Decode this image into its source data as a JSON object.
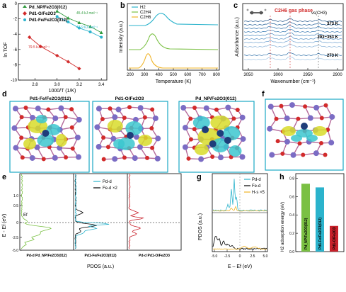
{
  "panels": {
    "a": {
      "label": "a",
      "ylabel": "ln TOF",
      "xlabel": "1000/T (1/K)",
      "xticks": [
        "2.8",
        "3.0",
        "3.2",
        "3.4"
      ],
      "yticks": [
        "-10",
        "-8",
        "-6",
        "-4",
        "-2",
        "0"
      ],
      "legend": [
        "Pd_NP/Fe2O3(012)",
        "Pd1-O/Fe2O3",
        "Pd1-Fe/Fe2O3(012)"
      ],
      "annotations": [
        "45.4 kJ mol⁻¹",
        "47.9 kJ mol⁻¹",
        "79.5 kJ mol⁻¹"
      ],
      "colors": {
        "np": "#2e9a3c",
        "o": "#d12a2a",
        "fe": "#2bb3cc"
      }
    },
    "b": {
      "label": "b",
      "ylabel": "Intensity (a.u.)",
      "xlabel": "Temperature (K)",
      "xticks": [
        "200",
        "300",
        "400",
        "500",
        "600",
        "700",
        "800"
      ],
      "legend": [
        "H2",
        "C2H4",
        "C2H6"
      ],
      "colors": [
        "#2bb3cc",
        "#7ac043",
        "#f0b428"
      ]
    },
    "c": {
      "label": "c",
      "ylabel": "Adsorbance (a.u.)",
      "xlabel": "Wavenumber (cm⁻¹)",
      "xticks": [
        "3050",
        "3000",
        "2950",
        "2900"
      ],
      "gas_label": "C2H6 gas phase",
      "vs_label": "νs(CH3)",
      "temps": [
        "373 K",
        "293~353 K",
        "273 K"
      ]
    },
    "d": {
      "label": "d",
      "titles": [
        "Pd1-Fe/Fe2O3(012)",
        "Pd1-O/Fe2O3",
        "Pd_NP/Fe2O3(012)"
      ]
    },
    "e": {
      "label": "e",
      "ylabel": "E - Ef (eV)",
      "xlabel": "PDOS (a.u.)",
      "yticks": [
        "1.0",
        "0.5",
        "0",
        "-2.5",
        "-5.0"
      ],
      "ef_label": "Ef",
      "legend": [
        "Pd-d",
        "Fe-d ×2"
      ],
      "bottom": [
        "Pd-d Pd_NP/Fe2O3(012)",
        "Pd1-Fe/Fe2O3(012)",
        "Pd-d Pd1-O/Fe2O3"
      ]
    },
    "f": {
      "label": "f"
    },
    "g": {
      "label": "g",
      "ylabel": "PDOS (a.u.)",
      "xlabel": "E – Ef (eV)",
      "xticks": [
        "-5.0",
        "-2.5",
        "0",
        "2.5",
        "5.0"
      ],
      "legend": [
        "Pd-d",
        "Fe-d",
        "H-s ×5"
      ]
    },
    "h": {
      "label": "h",
      "ylabel": "H2 adsorption energy (eV)",
      "yticks": [
        "0.0",
        "0.2",
        "0.4",
        "0.6",
        "0.8"
      ],
      "bars": [
        {
          "label": "Pd_NP/Fe2O3(012)",
          "value": 0.74,
          "color": "#7ac043"
        },
        {
          "label": "Pd1-Fe/Fe2O3(012)",
          "value": 0.7,
          "color": "#2bb3cc"
        },
        {
          "label": "Pd1-O/Fe2O3",
          "value": 0.28,
          "color": "#c8202a"
        }
      ]
    }
  },
  "chart_data": [
    {
      "type": "scatter",
      "panel": "a",
      "xlabel": "1000/T (1/K)",
      "ylabel": "ln TOF",
      "xlim": [
        2.65,
        3.45
      ],
      "ylim": [
        -10,
        0
      ],
      "series": [
        {
          "name": "Pd_NP/Fe2O3(012)",
          "x": [
            3.0,
            3.1,
            3.2,
            3.3,
            3.4
          ],
          "y": [
            -1.0,
            -1.9,
            -2.5,
            -3.0,
            -3.8
          ]
        },
        {
          "name": "Pd1-Fe/Fe2O3(012)",
          "x": [
            3.0,
            3.1,
            3.2,
            3.3,
            3.4
          ],
          "y": [
            -1.7,
            -2.4,
            -3.2,
            -3.7,
            -4.4
          ]
        },
        {
          "name": "Pd1-O/Fe2O3",
          "x": [
            2.75,
            2.85,
            3.0,
            3.1,
            3.2
          ],
          "y": [
            -4.4,
            -5.6,
            -6.8,
            -7.6,
            -8.5
          ]
        }
      ]
    },
    {
      "type": "bar",
      "panel": "h",
      "categories": [
        "Pd_NP/Fe2O3(012)",
        "Pd1-Fe/Fe2O3(012)",
        "Pd1-O/Fe2O3"
      ],
      "values": [
        0.74,
        0.7,
        0.28
      ],
      "ylabel": "H2 adsorption energy (eV)",
      "ylim": [
        0,
        0.85
      ]
    }
  ]
}
